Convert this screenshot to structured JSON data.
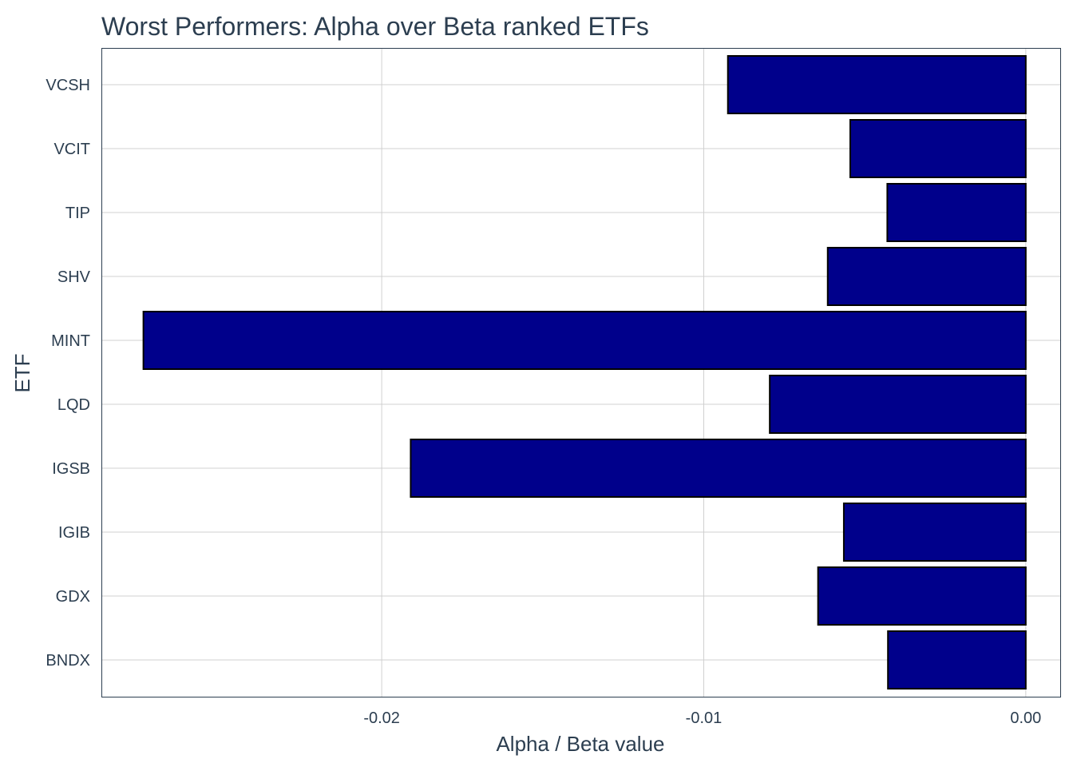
{
  "chart_data": {
    "type": "bar",
    "orientation": "horizontal",
    "title": "Worst Performers: Alpha over Beta ranked ETFs",
    "xlabel": "Alpha / Beta value",
    "ylabel": "ETF",
    "categories": [
      "VCSH",
      "VCIT",
      "TIP",
      "SHV",
      "MINT",
      "LQD",
      "IGSB",
      "IGIB",
      "GDX",
      "BNDX"
    ],
    "values": [
      -0.00925,
      -0.00545,
      -0.0043,
      -0.00615,
      -0.0274,
      -0.00795,
      -0.0191,
      -0.00565,
      -0.00645,
      -0.00428
    ],
    "xlim": [
      -0.02868,
      0.00107
    ],
    "x_ticks": [
      -0.02,
      -0.01,
      0.0
    ],
    "x_tick_labels": [
      "-0.02",
      "-0.01",
      "0.00"
    ],
    "grid": true,
    "legend": "none",
    "colors": {
      "bar_fill": "#00008B",
      "bar_stroke": "#000000",
      "text": "#2c3e50",
      "grid": "#d0d0d0",
      "background": "#ffffff"
    }
  }
}
